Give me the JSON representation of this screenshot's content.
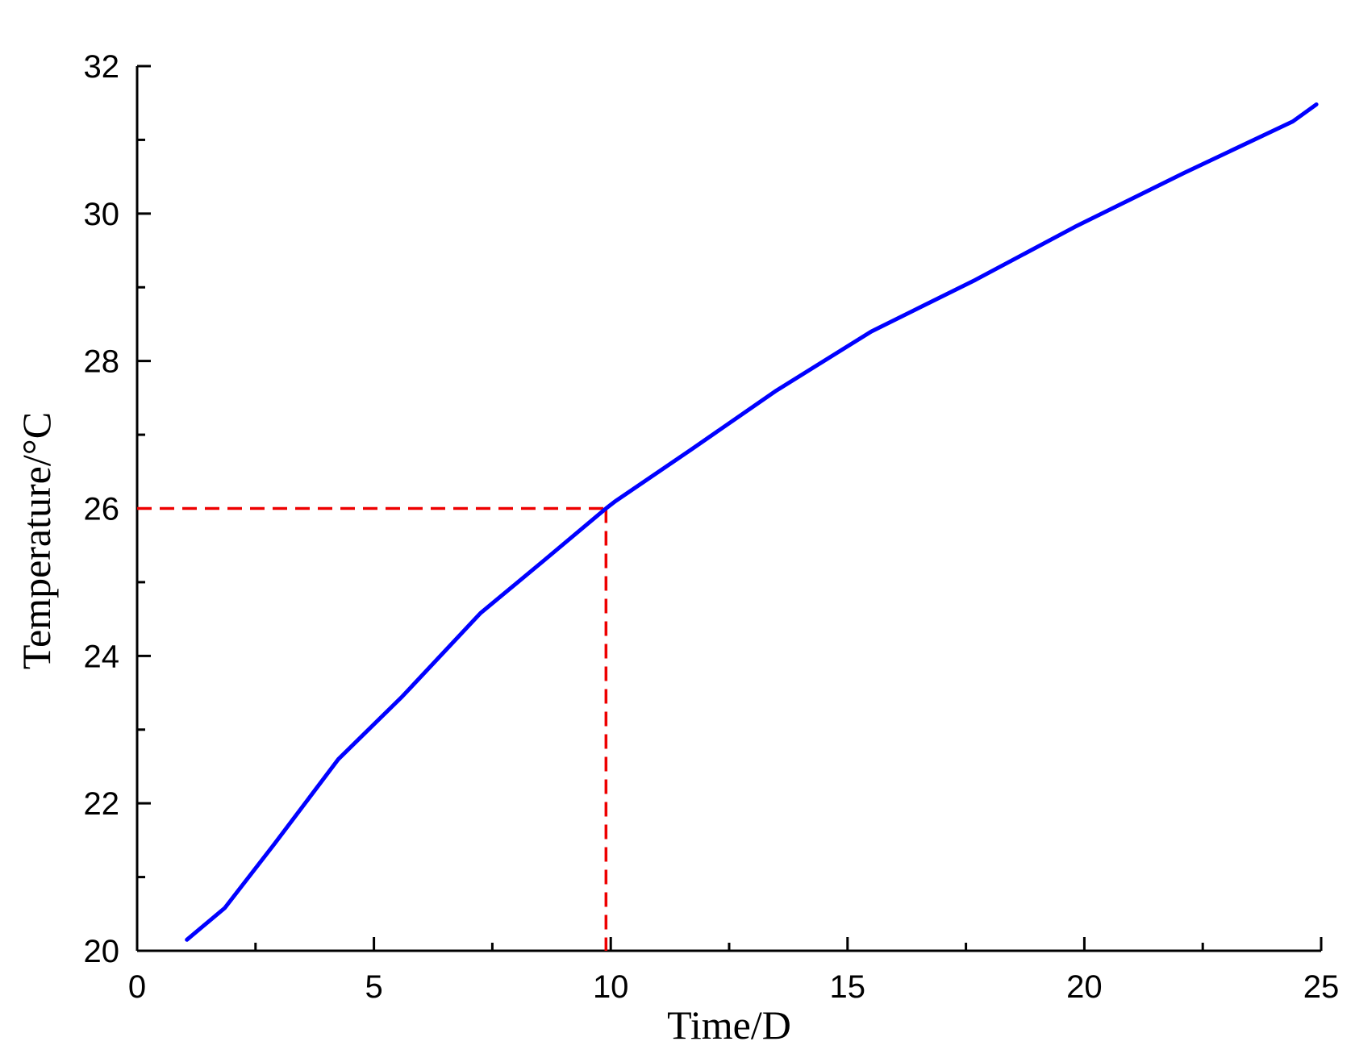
{
  "chart_data": {
    "type": "line",
    "title": "",
    "xlabel": "Time/D",
    "ylabel": "Temperature/°C",
    "xlim": [
      0,
      25
    ],
    "ylim": [
      20,
      32
    ],
    "xticks": [
      "0",
      "5",
      "10",
      "15",
      "20",
      "25"
    ],
    "yticks": [
      "20",
      "22",
      "24",
      "26",
      "28",
      "30",
      "32"
    ],
    "grid": false,
    "legend": "none",
    "series": [
      {
        "color": "#0000ff",
        "x": [
          1.05,
          1.85,
          2.9,
          4.25,
          5.6,
          7.25,
          8.6,
          9.9,
          10.1,
          11.7,
          13.5,
          15.5,
          17.7,
          19.8,
          22.1,
          24.4,
          24.9
        ],
        "y": [
          20.15,
          20.58,
          21.45,
          22.6,
          23.45,
          24.58,
          25.3,
          26.0,
          26.1,
          26.8,
          27.6,
          28.4,
          29.1,
          29.82,
          30.55,
          31.25,
          31.48
        ]
      }
    ],
    "annotations": [
      {
        "type": "reference-lines",
        "style": "dashed",
        "color": "#ee0000",
        "x": 9.9,
        "y": 26
      }
    ]
  }
}
